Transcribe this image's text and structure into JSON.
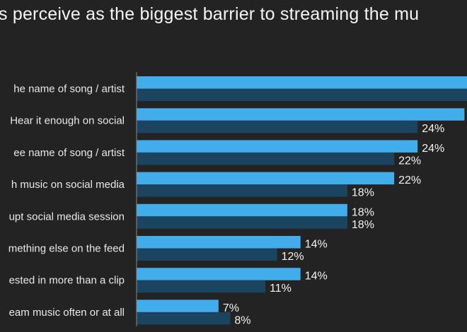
{
  "chart_data": {
    "type": "bar",
    "orientation": "horizontal",
    "title": "s perceive as the biggest barrier to streaming the mu",
    "categories": [
      "he name of song / artist",
      "Hear it enough on social",
      "ee name of song / artist",
      "h music on social media",
      "upt social media session",
      "mething else on the feed",
      "ested in more than a clip",
      "eam music often or at all"
    ],
    "series": [
      {
        "color": "#41adea",
        "values": [
          null,
          28,
          24,
          22,
          18,
          14,
          14,
          7
        ],
        "labels": [
          "",
          "",
          "24%",
          "22%",
          "18%",
          "14%",
          "14%",
          "7%"
        ]
      },
      {
        "color": "#1a4460",
        "values": [
          null,
          24,
          22,
          18,
          18,
          12,
          11,
          8
        ],
        "labels": [
          "",
          "24%",
          "22%",
          "18%",
          "18%",
          "12%",
          "11%",
          "8%"
        ]
      }
    ],
    "xlim": [
      0,
      28
    ],
    "grid": false,
    "legend": "none"
  }
}
